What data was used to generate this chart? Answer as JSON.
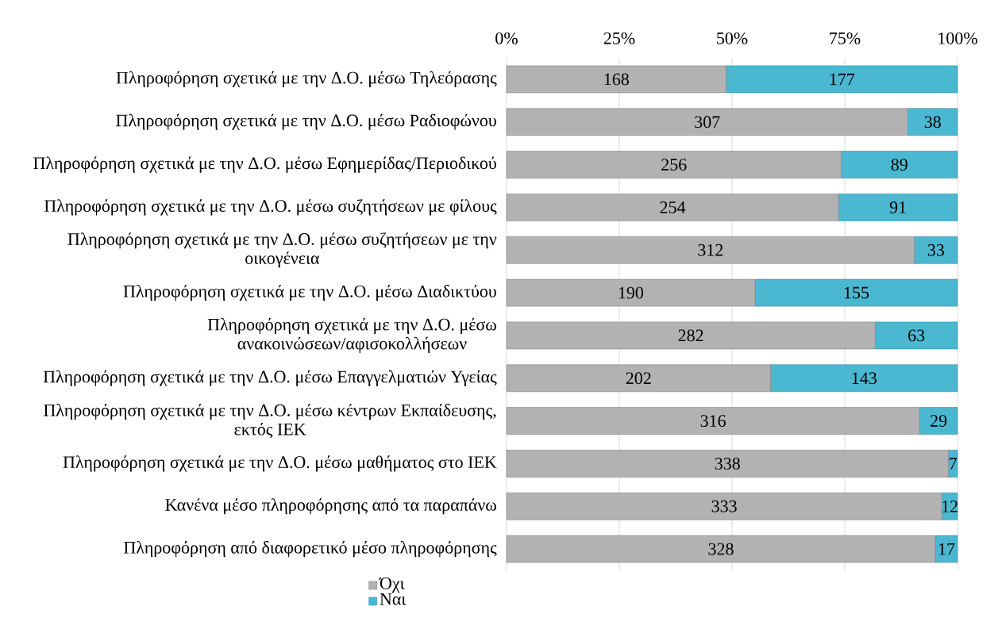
{
  "chart_data": {
    "type": "bar",
    "orientation": "horizontal",
    "stacked": true,
    "categories": [
      "Πληροφόρηση σχετικά με την Δ.Ο. μέσω Τηλεόρασης",
      "Πληροφόρηση σχετικά με την Δ.Ο. μέσω Ραδιοφώνου",
      "Πληροφόρηση σχετικά με την Δ.Ο. μέσω Εφημερίδας/Περιοδικού",
      "Πληροφόρηση σχετικά με την Δ.Ο. μέσω συζητήσεων με φίλους",
      "Πληροφόρηση σχετικά με την Δ.Ο. μέσω συζητήσεων με την οικογένεια",
      "Πληροφόρηση σχετικά με την Δ.Ο. μέσω Διαδικτύου",
      "Πληροφόρηση σχετικά με την Δ.Ο. μέσω ανακοινώσεων/αφισοκολλήσεων",
      "Πληροφόρηση σχετικά με την Δ.Ο. μέσω Επαγγελματιών Υγείας",
      "Πληροφόρηση σχετικά με την Δ.Ο. μέσω κέντρων Εκπαίδευσης, εκτός ΙΕΚ",
      "Πληροφόρηση σχετικά με την Δ.Ο. μέσω μαθήματος στο ΙΕΚ",
      "Κανένα μέσο πληροφόρησης από τα παραπάνω",
      "Πληροφόρηση από διαφορετικό μέσο πληροφόρησης"
    ],
    "series": [
      {
        "name": "Όχι",
        "color": "#b2b2b2",
        "values": [
          168,
          307,
          256,
          254,
          312,
          190,
          282,
          202,
          316,
          338,
          333,
          328
        ]
      },
      {
        "name": "Ναι",
        "color": "#4bb8d2",
        "values": [
          177,
          38,
          89,
          91,
          33,
          155,
          63,
          143,
          29,
          7,
          12,
          17
        ]
      }
    ],
    "xlim": [
      0,
      345
    ],
    "x2lim": [
      0,
      100
    ],
    "x2ticks": [
      {
        "value": 0,
        "label": "0%"
      },
      {
        "value": 25,
        "label": "25%"
      },
      {
        "value": 50,
        "label": "50%"
      },
      {
        "value": 75,
        "label": "75%"
      },
      {
        "value": 100,
        "label": "100%"
      }
    ],
    "data_labels": true,
    "grid": "x",
    "legend": "bottom left"
  }
}
